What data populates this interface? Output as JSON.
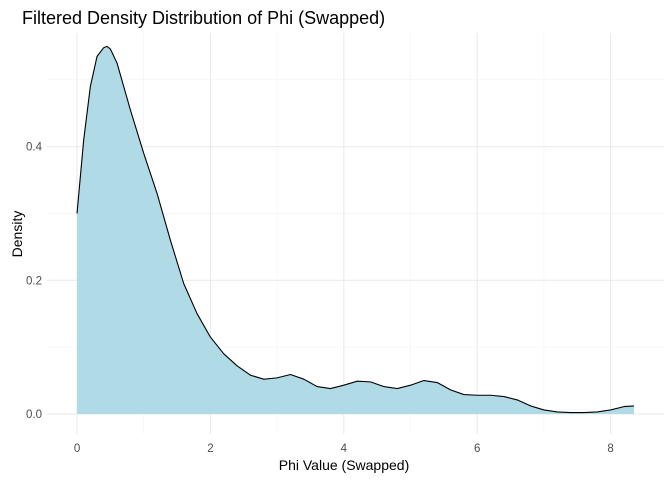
{
  "chart_data": {
    "type": "area",
    "title": "Filtered Density Distribution of Phi (Swapped)",
    "xlabel": "Phi Value (Swapped)",
    "ylabel": "Density",
    "xlim": [
      -0.45,
      8.8
    ],
    "ylim": [
      -0.03,
      0.57
    ],
    "x_ticks": [
      0,
      2,
      4,
      6,
      8
    ],
    "x_tick_labels": [
      "0",
      "2",
      "4",
      "6",
      "8"
    ],
    "y_ticks": [
      0.0,
      0.2,
      0.4
    ],
    "y_tick_labels": [
      "0.0",
      "0.2",
      "0.4"
    ],
    "x_minor_ticks": [
      1,
      3,
      5,
      7
    ],
    "y_minor_ticks": [
      0.1,
      0.3,
      0.5
    ],
    "grid": true,
    "fill_color": "#add8e6",
    "line_color": "#000000",
    "series": [
      {
        "x": [
          0,
          0.1,
          0.2,
          0.3,
          0.4,
          0.45,
          0.5,
          0.6,
          0.7,
          0.8,
          1.0,
          1.2,
          1.4,
          1.6,
          1.8,
          2.0,
          2.2,
          2.4,
          2.6,
          2.8,
          3.0,
          3.2,
          3.4,
          3.6,
          3.8,
          4.0,
          4.2,
          4.4,
          4.6,
          4.8,
          5.0,
          5.2,
          5.4,
          5.6,
          5.8,
          6.0,
          6.2,
          6.4,
          6.6,
          6.8,
          7.0,
          7.2,
          7.4,
          7.6,
          7.8,
          8.0,
          8.2,
          8.35
        ],
        "y": [
          0.3,
          0.41,
          0.49,
          0.535,
          0.548,
          0.55,
          0.546,
          0.525,
          0.49,
          0.455,
          0.39,
          0.33,
          0.26,
          0.195,
          0.15,
          0.115,
          0.09,
          0.072,
          0.058,
          0.052,
          0.054,
          0.059,
          0.052,
          0.041,
          0.038,
          0.043,
          0.049,
          0.048,
          0.041,
          0.038,
          0.043,
          0.05,
          0.047,
          0.036,
          0.029,
          0.028,
          0.028,
          0.026,
          0.021,
          0.012,
          0.006,
          0.003,
          0.002,
          0.002,
          0.003,
          0.006,
          0.011,
          0.012
        ]
      }
    ]
  }
}
